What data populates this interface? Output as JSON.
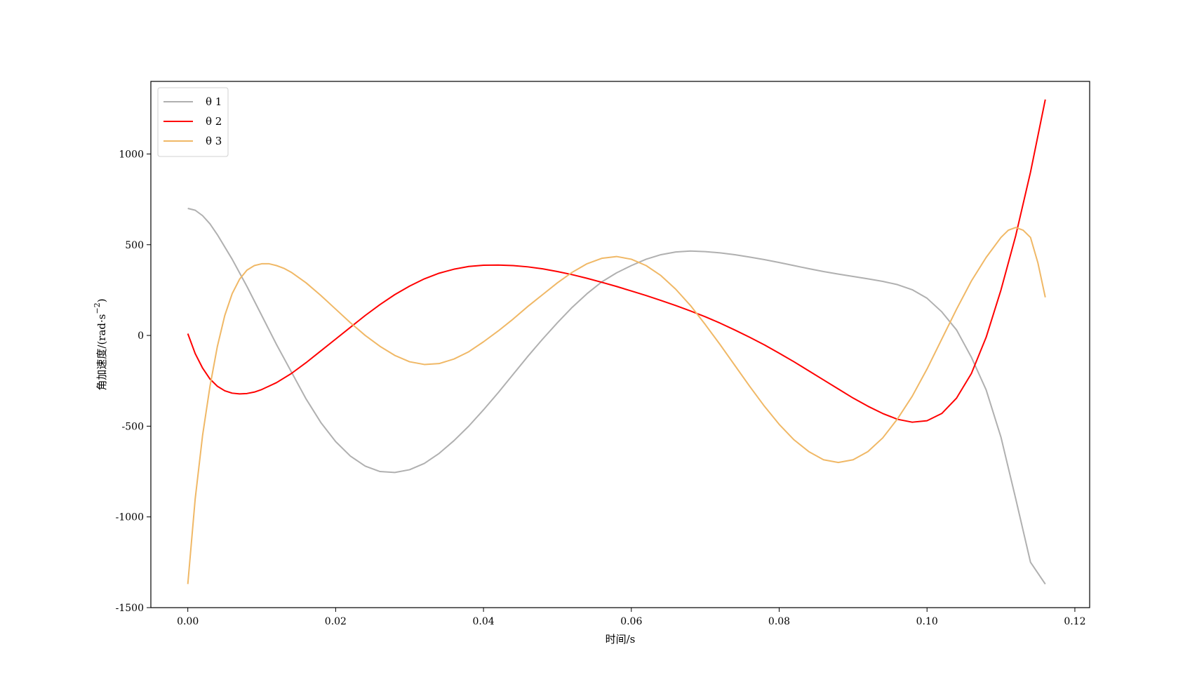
{
  "chart_data": {
    "type": "line",
    "title": "",
    "xlabel": "时间/s",
    "ylabel_prefix": "角加速度/(rad·s",
    "ylabel_sup": "−2",
    "ylabel_suffix": ")",
    "xlim": [
      -0.005,
      0.122
    ],
    "ylim": [
      -1500,
      1400
    ],
    "xticks": [
      0.0,
      0.02,
      0.04,
      0.06,
      0.08,
      0.1,
      0.12
    ],
    "xtick_labels": [
      "0.00",
      "0.02",
      "0.04",
      "0.06",
      "0.08",
      "0.10",
      "0.12"
    ],
    "yticks": [
      -1500,
      -1000,
      -500,
      0,
      500,
      1000
    ],
    "ytick_labels": [
      "-1500",
      "-1000",
      "-500",
      "0",
      "500",
      "1000"
    ],
    "grid": false,
    "legend_position": "top-left",
    "series": [
      {
        "name": "θ 1",
        "color": "#b0b0b0",
        "x": [
          0.0,
          0.001,
          0.002,
          0.003,
          0.004,
          0.006,
          0.008,
          0.01,
          0.012,
          0.014,
          0.016,
          0.018,
          0.02,
          0.022,
          0.024,
          0.026,
          0.028,
          0.03,
          0.032,
          0.034,
          0.036,
          0.038,
          0.04,
          0.042,
          0.044,
          0.046,
          0.048,
          0.05,
          0.052,
          0.054,
          0.056,
          0.058,
          0.06,
          0.062,
          0.064,
          0.066,
          0.068,
          0.07,
          0.072,
          0.074,
          0.076,
          0.078,
          0.08,
          0.082,
          0.084,
          0.086,
          0.088,
          0.09,
          0.092,
          0.094,
          0.096,
          0.098,
          0.1,
          0.102,
          0.104,
          0.106,
          0.108,
          0.11,
          0.112,
          0.114,
          0.116
        ],
        "y": [
          700,
          690,
          660,
          615,
          555,
          420,
          270,
          110,
          -50,
          -200,
          -350,
          -480,
          -585,
          -665,
          -720,
          -750,
          -755,
          -740,
          -705,
          -650,
          -580,
          -500,
          -410,
          -315,
          -215,
          -115,
          -20,
          70,
          155,
          230,
          295,
          345,
          385,
          420,
          445,
          460,
          465,
          462,
          455,
          445,
          432,
          418,
          402,
          385,
          368,
          352,
          338,
          325,
          312,
          298,
          280,
          252,
          205,
          130,
          30,
          -120,
          -300,
          -560,
          -900,
          -1250,
          -1370
        ]
      },
      {
        "name": "θ 2",
        "color": "#ff0000",
        "x": [
          0.0,
          0.001,
          0.002,
          0.003,
          0.004,
          0.005,
          0.006,
          0.007,
          0.008,
          0.009,
          0.01,
          0.012,
          0.014,
          0.016,
          0.018,
          0.02,
          0.022,
          0.024,
          0.026,
          0.028,
          0.03,
          0.032,
          0.034,
          0.036,
          0.038,
          0.04,
          0.042,
          0.044,
          0.046,
          0.048,
          0.05,
          0.052,
          0.054,
          0.056,
          0.058,
          0.06,
          0.062,
          0.064,
          0.066,
          0.068,
          0.07,
          0.072,
          0.074,
          0.076,
          0.078,
          0.08,
          0.082,
          0.084,
          0.086,
          0.088,
          0.09,
          0.092,
          0.094,
          0.096,
          0.098,
          0.1,
          0.102,
          0.104,
          0.106,
          0.108,
          0.11,
          0.112,
          0.114,
          0.116
        ],
        "y": [
          10,
          -100,
          -180,
          -240,
          -280,
          -305,
          -318,
          -322,
          -320,
          -312,
          -298,
          -260,
          -210,
          -150,
          -85,
          -20,
          45,
          110,
          170,
          225,
          272,
          312,
          343,
          365,
          380,
          387,
          388,
          385,
          378,
          367,
          352,
          335,
          315,
          293,
          270,
          245,
          220,
          193,
          165,
          135,
          103,
          68,
          30,
          -10,
          -52,
          -98,
          -145,
          -195,
          -245,
          -295,
          -345,
          -390,
          -430,
          -462,
          -478,
          -470,
          -430,
          -345,
          -210,
          -10,
          250,
          550,
          900,
          1300
        ]
      },
      {
        "name": "θ 3",
        "color": "#f0b866",
        "x": [
          0.0,
          0.001,
          0.002,
          0.003,
          0.004,
          0.005,
          0.006,
          0.007,
          0.008,
          0.009,
          0.01,
          0.011,
          0.012,
          0.013,
          0.014,
          0.016,
          0.018,
          0.02,
          0.022,
          0.024,
          0.026,
          0.028,
          0.03,
          0.032,
          0.034,
          0.036,
          0.038,
          0.04,
          0.042,
          0.044,
          0.046,
          0.048,
          0.05,
          0.052,
          0.054,
          0.056,
          0.058,
          0.06,
          0.062,
          0.064,
          0.066,
          0.068,
          0.07,
          0.072,
          0.074,
          0.076,
          0.078,
          0.08,
          0.082,
          0.084,
          0.086,
          0.088,
          0.09,
          0.092,
          0.094,
          0.096,
          0.098,
          0.1,
          0.102,
          0.104,
          0.106,
          0.108,
          0.11,
          0.111,
          0.112,
          0.113,
          0.114,
          0.115,
          0.116
        ],
        "y": [
          -1370,
          -900,
          -550,
          -280,
          -60,
          110,
          230,
          310,
          360,
          385,
          395,
          395,
          385,
          370,
          348,
          290,
          220,
          145,
          70,
          0,
          -60,
          -110,
          -145,
          -160,
          -155,
          -130,
          -90,
          -35,
          25,
          90,
          160,
          225,
          290,
          348,
          395,
          425,
          435,
          420,
          385,
          330,
          255,
          165,
          60,
          -50,
          -165,
          -280,
          -390,
          -490,
          -575,
          -640,
          -685,
          -700,
          -685,
          -640,
          -565,
          -460,
          -335,
          -185,
          -20,
          145,
          300,
          430,
          540,
          580,
          595,
          580,
          540,
          400,
          210
        ]
      }
    ]
  }
}
